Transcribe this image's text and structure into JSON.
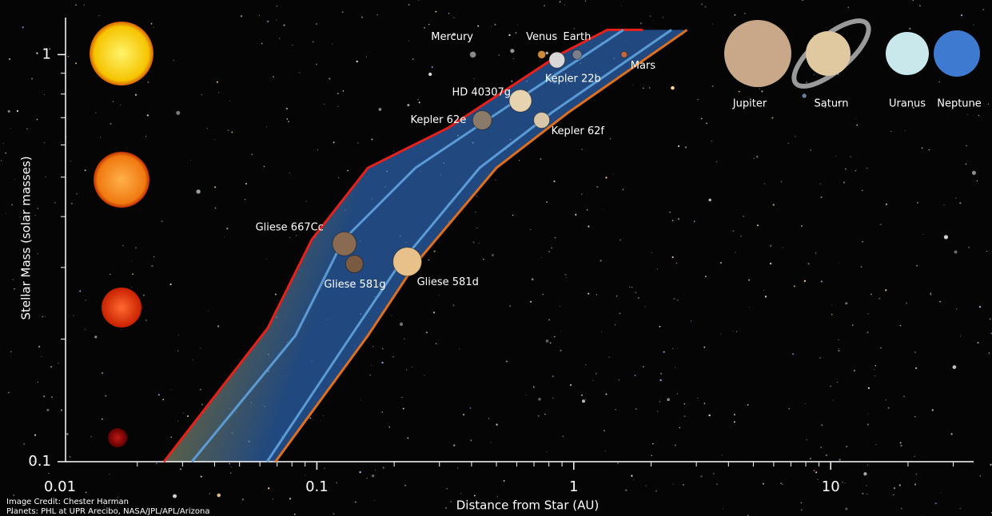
{
  "chart_data": {
    "type": "line",
    "xlabel": "Distance from Star (AU)",
    "ylabel": "Stellar Mass (solar masses)",
    "log_x": true,
    "log_y": true,
    "xlim": [
      0.01,
      36
    ],
    "ylim": [
      0.1,
      1.2
    ],
    "xticks": [
      0.01,
      0.1,
      1,
      10
    ],
    "xminor": [
      0.02,
      0.03,
      0.04,
      0.05,
      0.06,
      0.07,
      0.08,
      0.09,
      0.2,
      0.3,
      0.4,
      0.5,
      0.6,
      0.7,
      0.8,
      0.9,
      2,
      3,
      4,
      5,
      6,
      7,
      8,
      9,
      20,
      30
    ],
    "yticks": [
      0.1,
      1
    ],
    "yminor": [
      0.2,
      0.3,
      0.4,
      0.5,
      0.6,
      0.7,
      0.8,
      0.9
    ],
    "zone_colors": [
      "#d9a400",
      "#2a5fa8"
    ],
    "series": [
      {
        "color": "#e8201a",
        "x": [
          0.0254,
          0.0644,
          0.0955,
          0.158,
          0.323,
          0.88,
          1.35,
          1.86
        ],
        "values": [
          0.1,
          0.213,
          0.351,
          0.527,
          0.66,
          1.0,
          1.15,
          1.15
        ]
      },
      {
        "color": "#5b9bd5",
        "x": [
          0.0326,
          0.0825,
          0.127,
          0.242,
          0.57,
          1.56
        ],
        "values": [
          0.1,
          0.204,
          0.351,
          0.527,
          0.756,
          1.15
        ]
      },
      {
        "color": "#5b9bd5",
        "x": [
          0.064,
          0.136,
          0.21,
          0.43,
          0.82,
          2.4
        ],
        "values": [
          0.1,
          0.204,
          0.306,
          0.527,
          0.72,
          1.15
        ]
      },
      {
        "color": "#e0701a",
        "x": [
          0.069,
          0.158,
          0.242,
          0.5,
          0.95,
          2.76
        ],
        "values": [
          0.1,
          0.204,
          0.306,
          0.527,
          0.72,
          1.15
        ]
      }
    ],
    "points": [
      {
        "label": "Mercury",
        "x": 0.405,
        "y": 1,
        "color": "#8a8a8a"
      },
      {
        "label": "Venus",
        "x": 0.75,
        "y": 1,
        "color": "#d08a3a"
      },
      {
        "label": "Earth",
        "x": 1.03,
        "y": 1,
        "color": "#7a7f8a"
      },
      {
        "label": "Mars",
        "x": 1.57,
        "y": 1,
        "color": "#c0683a"
      },
      {
        "label": "Kepler 22b",
        "x": 0.86,
        "y": 0.97,
        "color": "#d8d8d8"
      },
      {
        "label": "HD 40307g",
        "x": 0.62,
        "y": 0.77,
        "color": "#e8d3b0"
      },
      {
        "label": "Kepler 62e",
        "x": 0.44,
        "y": 0.69,
        "color": "#8a7a6a"
      },
      {
        "label": "Kepler 62f",
        "x": 0.75,
        "y": 0.69,
        "color": "#d8c6a8"
      },
      {
        "label": "Gliese 667Cc",
        "x": 0.128,
        "y": 0.343,
        "color": "#8a6a50"
      },
      {
        "label": "Gliese 581g",
        "x": 0.14,
        "y": 0.306,
        "color": "#7a5a40"
      },
      {
        "label": "Gliese 581d",
        "x": 0.225,
        "y": 0.31,
        "color": "#e8c08a"
      }
    ]
  },
  "outer_planets": [
    "Jupiter",
    "Saturn",
    "Uranus",
    "Neptune"
  ],
  "credits": [
    "Image Credit: Chester Harman",
    "Planets: PHL at UPR Arecibo, NASA/JPL/APL/Arizona"
  ]
}
